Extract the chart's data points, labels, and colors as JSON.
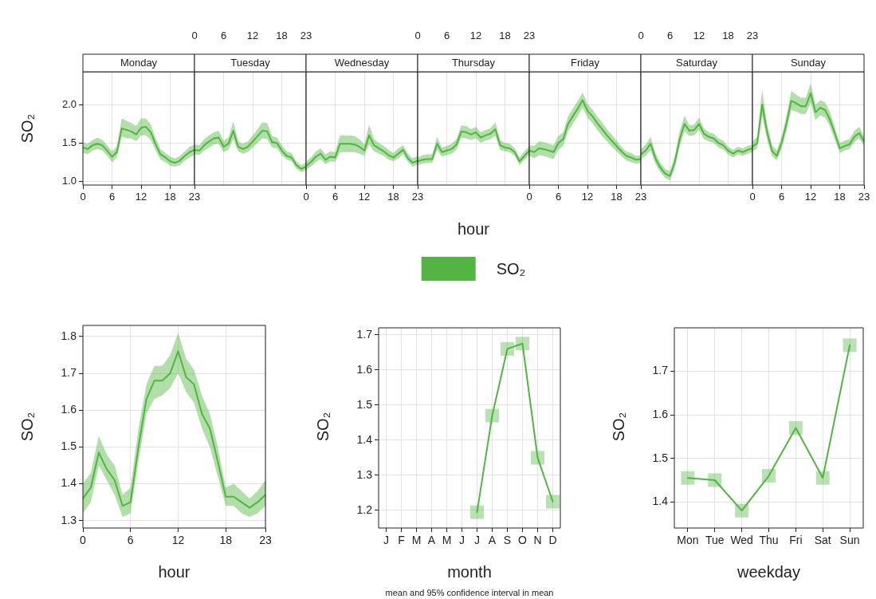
{
  "chart_data": [
    {
      "type": "line",
      "title": "Monday",
      "ylabel": "SO₂",
      "x": [
        0,
        1,
        2,
        3,
        4,
        5,
        6,
        7,
        8,
        9,
        10,
        11,
        12,
        13,
        14,
        15,
        16,
        17,
        18,
        19,
        20,
        21,
        22,
        23
      ],
      "xlim": [
        0,
        23
      ],
      "xticks": [
        0,
        6,
        12,
        18,
        23
      ],
      "ylim": [
        0.95,
        2.43
      ],
      "yticks": [
        {
          "value": 1,
          "label": "1.0"
        },
        1.5,
        {
          "value": 2,
          "label": "2.0"
        }
      ],
      "grid": true,
      "series": [
        {
          "color": "#52b541",
          "values": [
            1.44,
            1.42,
            1.47,
            1.49,
            1.47,
            1.4,
            1.32,
            1.38,
            1.69,
            1.67,
            1.65,
            1.61,
            1.7,
            1.71,
            1.64,
            1.48,
            1.35,
            1.31,
            1.26,
            1.24,
            1.27,
            1.33,
            1.38,
            1.41
          ],
          "lower": [
            1.37,
            1.35,
            1.4,
            1.42,
            1.4,
            1.33,
            1.25,
            1.31,
            1.58,
            1.56,
            1.56,
            1.52,
            1.6,
            1.6,
            1.54,
            1.4,
            1.28,
            1.25,
            1.2,
            1.19,
            1.21,
            1.27,
            1.31,
            1.34
          ],
          "upper": [
            1.51,
            1.49,
            1.54,
            1.57,
            1.54,
            1.47,
            1.39,
            1.45,
            1.82,
            1.79,
            1.76,
            1.72,
            1.82,
            1.82,
            1.74,
            1.56,
            1.42,
            1.37,
            1.32,
            1.3,
            1.33,
            1.39,
            1.45,
            1.48
          ]
        }
      ]
    },
    {
      "type": "line",
      "title": "Tuesday",
      "x": [
        0,
        1,
        2,
        3,
        4,
        5,
        6,
        7,
        8,
        9,
        10,
        11,
        12,
        13,
        14,
        15,
        16,
        17,
        18,
        19,
        20,
        21,
        22,
        23
      ],
      "xlim": [
        0,
        23
      ],
      "xticks": [
        0,
        6,
        12,
        18,
        23
      ],
      "ylim": [
        0.95,
        2.43
      ],
      "yticks": [
        1,
        1.5,
        2
      ],
      "grid": true,
      "tick_labels": "x",
      "series": [
        {
          "color": "#52b541",
          "values": [
            1.41,
            1.4,
            1.47,
            1.52,
            1.56,
            1.57,
            1.45,
            1.49,
            1.66,
            1.45,
            1.42,
            1.45,
            1.52,
            1.59,
            1.66,
            1.65,
            1.51,
            1.5,
            1.4,
            1.33,
            1.31,
            1.21,
            1.16,
            1.19
          ],
          "lower": [
            1.35,
            1.34,
            1.4,
            1.44,
            1.48,
            1.49,
            1.38,
            1.41,
            1.55,
            1.39,
            1.36,
            1.38,
            1.44,
            1.5,
            1.56,
            1.55,
            1.44,
            1.43,
            1.34,
            1.28,
            1.26,
            1.16,
            1.12,
            1.14
          ],
          "upper": [
            1.48,
            1.47,
            1.55,
            1.6,
            1.64,
            1.66,
            1.53,
            1.57,
            1.78,
            1.52,
            1.49,
            1.52,
            1.6,
            1.68,
            1.77,
            1.76,
            1.59,
            1.57,
            1.47,
            1.39,
            1.37,
            1.26,
            1.21,
            1.25
          ]
        }
      ]
    },
    {
      "type": "line",
      "title": "Wednesday",
      "x": [
        0,
        1,
        2,
        3,
        4,
        5,
        6,
        7,
        8,
        9,
        10,
        11,
        12,
        13,
        14,
        15,
        16,
        17,
        18,
        19,
        20,
        21,
        22,
        23
      ],
      "xlim": [
        0,
        23
      ],
      "xticks": [
        0,
        6,
        12,
        18,
        23
      ],
      "ylim": [
        0.95,
        2.43
      ],
      "yticks": [
        1,
        1.5,
        2
      ],
      "grid": true,
      "tick_labels": "x",
      "series": [
        {
          "color": "#52b541",
          "values": [
            1.2,
            1.25,
            1.32,
            1.36,
            1.28,
            1.32,
            1.31,
            1.49,
            1.49,
            1.49,
            1.48,
            1.45,
            1.4,
            1.6,
            1.47,
            1.43,
            1.39,
            1.34,
            1.31,
            1.36,
            1.41,
            1.3,
            1.24,
            1.27
          ],
          "lower": [
            1.15,
            1.19,
            1.25,
            1.29,
            1.22,
            1.26,
            1.25,
            1.38,
            1.38,
            1.38,
            1.38,
            1.36,
            1.33,
            1.48,
            1.39,
            1.36,
            1.33,
            1.28,
            1.26,
            1.3,
            1.35,
            1.25,
            1.19,
            1.22
          ],
          "upper": [
            1.26,
            1.31,
            1.39,
            1.43,
            1.35,
            1.39,
            1.38,
            1.6,
            1.6,
            1.6,
            1.59,
            1.55,
            1.48,
            1.74,
            1.55,
            1.5,
            1.46,
            1.41,
            1.37,
            1.43,
            1.47,
            1.36,
            1.3,
            1.33
          ]
        }
      ]
    },
    {
      "type": "line",
      "title": "Thursday",
      "xlabel": "hour",
      "legend": "bottom",
      "x": [
        0,
        1,
        2,
        3,
        4,
        5,
        6,
        7,
        8,
        9,
        10,
        11,
        12,
        13,
        14,
        15,
        16,
        17,
        18,
        19,
        20,
        21,
        22,
        23
      ],
      "xlim": [
        0,
        23
      ],
      "xticks": [
        0,
        6,
        12,
        18,
        23
      ],
      "ylim": [
        0.95,
        2.43
      ],
      "yticks": [
        1,
        1.5,
        2
      ],
      "grid": true,
      "tick_labels": "x",
      "series": [
        {
          "name": "SO₂",
          "color": "#52b541",
          "values": [
            1.26,
            1.28,
            1.29,
            1.29,
            1.49,
            1.38,
            1.4,
            1.42,
            1.48,
            1.65,
            1.64,
            1.61,
            1.64,
            1.57,
            1.6,
            1.62,
            1.68,
            1.47,
            1.44,
            1.43,
            1.38,
            1.26,
            1.33,
            1.4
          ],
          "lower": [
            1.21,
            1.23,
            1.24,
            1.24,
            1.41,
            1.32,
            1.34,
            1.36,
            1.41,
            1.57,
            1.56,
            1.54,
            1.56,
            1.5,
            1.53,
            1.55,
            1.59,
            1.41,
            1.39,
            1.38,
            1.33,
            1.21,
            1.28,
            1.34
          ],
          "upper": [
            1.31,
            1.34,
            1.35,
            1.35,
            1.58,
            1.44,
            1.46,
            1.49,
            1.55,
            1.73,
            1.72,
            1.68,
            1.71,
            1.64,
            1.67,
            1.69,
            1.77,
            1.54,
            1.5,
            1.49,
            1.43,
            1.31,
            1.39,
            1.46
          ]
        }
      ]
    },
    {
      "type": "line",
      "title": "Friday",
      "x": [
        0,
        1,
        2,
        3,
        4,
        5,
        6,
        7,
        8,
        9,
        10,
        11,
        12,
        13,
        14,
        15,
        16,
        17,
        18,
        19,
        20,
        21,
        22,
        23
      ],
      "xlim": [
        0,
        23
      ],
      "xticks": [
        0,
        6,
        12,
        18,
        23
      ],
      "ylim": [
        0.95,
        2.43
      ],
      "yticks": [
        1,
        1.5,
        2
      ],
      "grid": true,
      "tick_labels": "x",
      "series": [
        {
          "color": "#52b541",
          "values": [
            1.4,
            1.38,
            1.43,
            1.42,
            1.4,
            1.38,
            1.5,
            1.55,
            1.75,
            1.85,
            1.95,
            2.06,
            1.92,
            1.85,
            1.76,
            1.68,
            1.6,
            1.53,
            1.46,
            1.39,
            1.33,
            1.31,
            1.28,
            1.29
          ],
          "lower": [
            1.33,
            1.3,
            1.34,
            1.33,
            1.31,
            1.29,
            1.41,
            1.46,
            1.65,
            1.75,
            1.85,
            1.96,
            1.83,
            1.76,
            1.67,
            1.59,
            1.52,
            1.45,
            1.39,
            1.33,
            1.27,
            1.25,
            1.23,
            1.24
          ],
          "upper": [
            1.47,
            1.46,
            1.52,
            1.51,
            1.49,
            1.47,
            1.59,
            1.64,
            1.85,
            1.95,
            2.05,
            2.16,
            2.01,
            1.94,
            1.85,
            1.77,
            1.68,
            1.61,
            1.53,
            1.45,
            1.39,
            1.37,
            1.33,
            1.34
          ]
        }
      ]
    },
    {
      "type": "line",
      "title": "Saturday",
      "x": [
        0,
        1,
        2,
        3,
        4,
        5,
        6,
        7,
        8,
        9,
        10,
        11,
        12,
        13,
        14,
        15,
        16,
        17,
        18,
        19,
        20,
        21,
        22,
        23
      ],
      "xlim": [
        0,
        23
      ],
      "xticks": [
        0,
        6,
        12,
        18,
        23
      ],
      "ylim": [
        0.95,
        2.43
      ],
      "yticks": [
        1,
        1.5,
        2
      ],
      "grid": true,
      "tick_labels": "x",
      "series": [
        {
          "color": "#52b541",
          "values": [
            1.35,
            1.4,
            1.49,
            1.3,
            1.18,
            1.1,
            1.07,
            1.25,
            1.55,
            1.75,
            1.66,
            1.67,
            1.75,
            1.62,
            1.58,
            1.56,
            1.5,
            1.47,
            1.4,
            1.36,
            1.4,
            1.38,
            1.41,
            1.43
          ],
          "lower": [
            1.29,
            1.33,
            1.4,
            1.23,
            1.12,
            1.04,
            1.01,
            1.17,
            1.45,
            1.65,
            1.59,
            1.6,
            1.67,
            1.55,
            1.52,
            1.5,
            1.44,
            1.41,
            1.35,
            1.31,
            1.35,
            1.33,
            1.36,
            1.38
          ],
          "upper": [
            1.42,
            1.48,
            1.58,
            1.37,
            1.24,
            1.16,
            1.13,
            1.33,
            1.65,
            1.86,
            1.73,
            1.74,
            1.83,
            1.69,
            1.64,
            1.62,
            1.56,
            1.53,
            1.45,
            1.41,
            1.45,
            1.43,
            1.46,
            1.48
          ]
        }
      ]
    },
    {
      "type": "line",
      "title": "Sunday",
      "x": [
        0,
        1,
        2,
        3,
        4,
        5,
        6,
        7,
        8,
        9,
        10,
        11,
        12,
        13,
        14,
        15,
        16,
        17,
        18,
        19,
        20,
        21,
        22,
        23
      ],
      "xlim": [
        0,
        23
      ],
      "xticks": [
        0,
        6,
        12,
        18,
        23
      ],
      "ylim": [
        0.95,
        2.43
      ],
      "yticks": [
        1,
        1.5,
        2
      ],
      "grid": true,
      "tick_labels": "x",
      "series": [
        {
          "color": "#52b541",
          "values": [
            1.45,
            1.5,
            2.0,
            1.65,
            1.4,
            1.33,
            1.5,
            1.75,
            2.05,
            2.02,
            1.98,
            1.98,
            2.15,
            1.9,
            1.96,
            1.93,
            1.8,
            1.62,
            1.43,
            1.46,
            1.48,
            1.58,
            1.63,
            1.52
          ],
          "lower": [
            1.39,
            1.43,
            1.85,
            1.55,
            1.33,
            1.27,
            1.42,
            1.65,
            1.93,
            1.91,
            1.88,
            1.88,
            2.03,
            1.8,
            1.86,
            1.83,
            1.71,
            1.54,
            1.37,
            1.4,
            1.42,
            1.51,
            1.56,
            1.46
          ],
          "upper": [
            1.52,
            1.58,
            2.2,
            1.75,
            1.48,
            1.4,
            1.58,
            1.85,
            2.18,
            2.13,
            2.09,
            2.09,
            2.28,
            2.0,
            2.06,
            2.03,
            1.9,
            1.7,
            1.5,
            1.53,
            1.55,
            1.66,
            1.71,
            1.59
          ]
        }
      ]
    },
    {
      "type": "line",
      "xlabel": "hour",
      "ylabel": "SO₂",
      "x": [
        0,
        1,
        2,
        3,
        4,
        5,
        6,
        7,
        8,
        9,
        10,
        11,
        12,
        13,
        14,
        15,
        16,
        17,
        18,
        19,
        20,
        21,
        22,
        23
      ],
      "xlim": [
        0,
        23
      ],
      "xticks": [
        0,
        6,
        12,
        18,
        23
      ],
      "ylim": [
        1.28,
        1.83
      ],
      "yticks": [
        1.3,
        1.4,
        1.5,
        1.6,
        1.7,
        1.8
      ],
      "grid": true,
      "series": [
        {
          "color": "#52b541",
          "values": [
            1.36,
            1.39,
            1.485,
            1.44,
            1.41,
            1.34,
            1.35,
            1.5,
            1.63,
            1.68,
            1.68,
            1.7,
            1.76,
            1.69,
            1.67,
            1.59,
            1.55,
            1.46,
            1.365,
            1.365,
            1.35,
            1.335,
            1.35,
            1.37
          ],
          "lower": [
            1.32,
            1.35,
            1.45,
            1.41,
            1.37,
            1.31,
            1.32,
            1.46,
            1.59,
            1.63,
            1.64,
            1.66,
            1.7,
            1.65,
            1.62,
            1.55,
            1.5,
            1.42,
            1.34,
            1.34,
            1.32,
            1.31,
            1.32,
            1.34
          ],
          "upper": [
            1.4,
            1.43,
            1.53,
            1.48,
            1.45,
            1.37,
            1.39,
            1.55,
            1.67,
            1.72,
            1.72,
            1.75,
            1.81,
            1.74,
            1.71,
            1.64,
            1.59,
            1.5,
            1.39,
            1.4,
            1.38,
            1.36,
            1.38,
            1.41
          ]
        }
      ]
    },
    {
      "type": "line",
      "xlabel": "month",
      "ylabel": "SO₂",
      "categories": [
        "J",
        "F",
        "M",
        "A",
        "M",
        "J",
        "J",
        "A",
        "S",
        "O",
        "N",
        "D"
      ],
      "ylim": [
        1.15,
        1.72
      ],
      "yticks": [
        1.2,
        1.3,
        1.4,
        1.5,
        1.6,
        1.7
      ],
      "grid": true,
      "marker": "square",
      "annotations": [
        "mean and 95% confidence interval in mean"
      ],
      "series": [
        {
          "color": "#52b541",
          "values": [
            null,
            null,
            null,
            null,
            null,
            null,
            1.195,
            1.47,
            1.66,
            1.675,
            1.35,
            1.225
          ]
        }
      ]
    },
    {
      "type": "line",
      "xlabel": "weekday",
      "ylabel": "SO₂",
      "categories": [
        "Mon",
        "Tue",
        "Wed",
        "Thu",
        "Fri",
        "Sat",
        "Sun"
      ],
      "ylim": [
        1.34,
        1.8
      ],
      "yticks": [
        1.4,
        1.5,
        1.6,
        1.7
      ],
      "grid": true,
      "marker": "square",
      "series": [
        {
          "color": "#52b541",
          "values": [
            1.455,
            1.45,
            1.38,
            1.46,
            1.57,
            1.455,
            1.76
          ]
        }
      ]
    }
  ]
}
